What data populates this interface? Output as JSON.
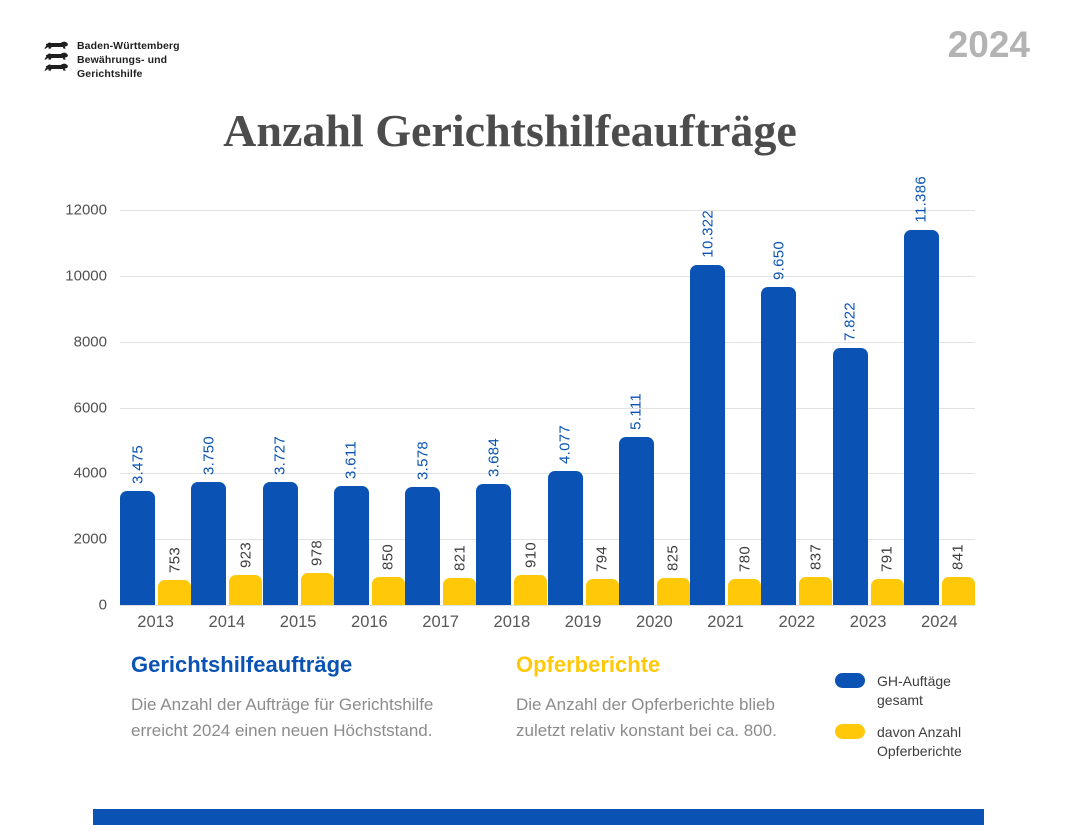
{
  "page": {
    "year_badge": "2024"
  },
  "logo": {
    "org_line1": "Baden-Württemberg",
    "org_line2": "Bewährungs- und",
    "org_line3": "Gerichtshilfe"
  },
  "title": "Anzahl Gerichtshilfeaufträge",
  "chart_data": {
    "type": "bar",
    "title": "Anzahl Gerichtshilfeaufträge",
    "categories": [
      "2013",
      "2014",
      "2015",
      "2016",
      "2017",
      "2018",
      "2019",
      "2020",
      "2021",
      "2022",
      "2023",
      "2024"
    ],
    "series": [
      {
        "name": "GH-Auftäge gesamt",
        "color": "#0A53B4",
        "label_color": "#0A53B4",
        "values": [
          3475,
          3750,
          3727,
          3611,
          3578,
          3684,
          4077,
          5111,
          10322,
          9650,
          7822,
          11386
        ],
        "labels": [
          "3.475",
          "3.750",
          "3.727",
          "3.611",
          "3.578",
          "3.684",
          "4.077",
          "5.111",
          "10.322",
          "9.650",
          "7.822",
          "11.386"
        ]
      },
      {
        "name": "davon Anzahl Opferberichte",
        "color": "#FFC90A",
        "label_color": "#3d3d3d",
        "values": [
          753,
          923,
          978,
          850,
          821,
          910,
          794,
          825,
          780,
          837,
          791,
          841
        ],
        "labels": [
          "753",
          "923",
          "978",
          "850",
          "821",
          "910",
          "794",
          "825",
          "780",
          "837",
          "791",
          "841"
        ]
      }
    ],
    "xlabel": "",
    "ylabel": "",
    "ylim": [
      0,
      12000
    ],
    "yticks": [
      "0",
      "2000",
      "4000",
      "6000",
      "8000",
      "10000",
      "12000"
    ],
    "grid": true,
    "legend_position": "bottom-right"
  },
  "annotations": {
    "gerichtshilfe": {
      "heading": "Gerichtshilfeaufträge",
      "body": "Die Anzahl der Aufträge für Gerichtshilfe erreicht 2024 einen neuen Höchststand."
    },
    "opferberichte": {
      "heading": "Opferberichte",
      "body": "Die Anzahl der Opferberichte blieb zuletzt relativ konstant bei ca. 800."
    }
  },
  "legend": {
    "items": [
      {
        "label": "GH-Auftäge gesamt",
        "color": "#0A53B4"
      },
      {
        "label": "davon Anzahl Opferberichte",
        "color": "#FFC90A"
      }
    ]
  },
  "colors": {
    "primary_blue": "#0A53B4",
    "accent_yellow": "#FFC90A",
    "title_gray": "#4c4c4c",
    "year_gray": "#b3b3b3",
    "body_gray": "#8c8c8c",
    "grid_gray": "#e2e2e2",
    "axis_label_gray": "#515151"
  }
}
